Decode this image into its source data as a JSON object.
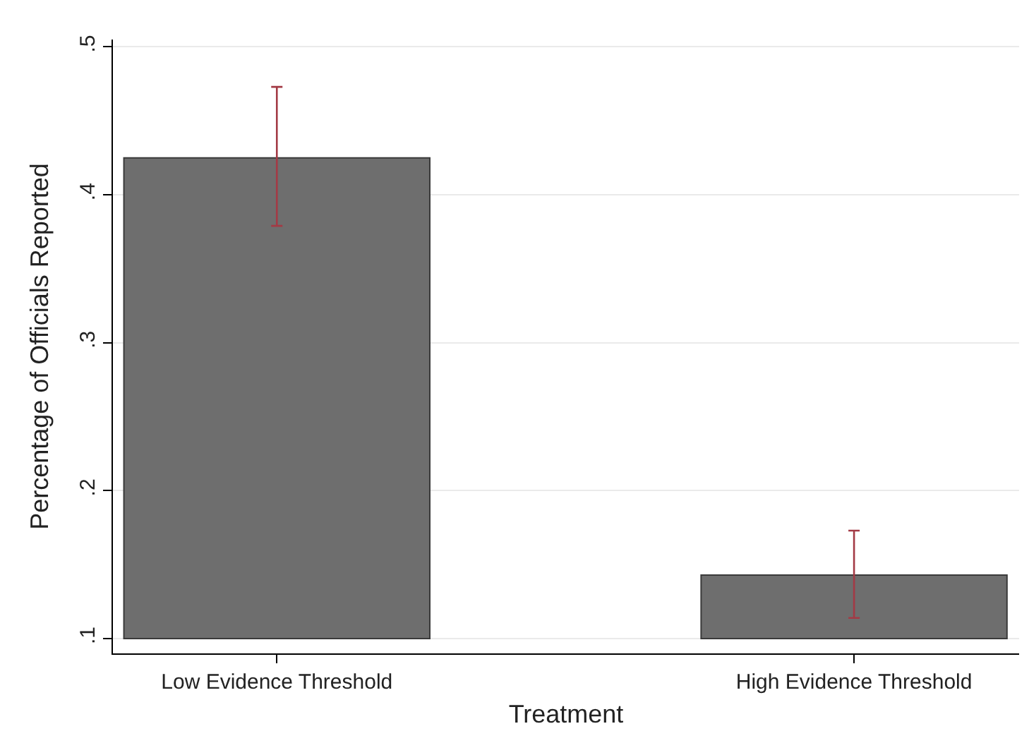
{
  "chart_data": {
    "type": "bar",
    "xlabel": "Treatment",
    "ylabel": "Percentage of Officials Reported",
    "categories": [
      "Low Evidence Threshold",
      "High Evidence Threshold"
    ],
    "base": [
      0.1,
      0.1
    ],
    "values": [
      0.325,
      0.043
    ],
    "color": "#6e6e6e",
    "errors": [
      [
        0.379,
        0.473
      ],
      [
        0.114,
        0.173
      ]
    ],
    "ylim": [
      0.09,
      0.505
    ],
    "yticks": [
      {
        "value": 0.1,
        "label": ".1"
      },
      {
        "value": 0.2,
        "label": ".2"
      },
      {
        "value": 0.3,
        "label": ".3"
      },
      {
        "value": 0.4,
        "label": ".4"
      },
      {
        "value": 0.5,
        "label": ".5"
      }
    ],
    "grid": "y"
  }
}
